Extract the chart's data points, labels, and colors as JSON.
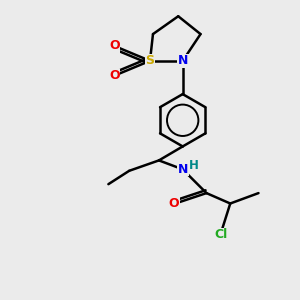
{
  "background_color": "#ebebeb",
  "atom_colors": {
    "C": "#000000",
    "N": "#0000ee",
    "O": "#ee0000",
    "S": "#ccaa00",
    "Cl": "#22aa22",
    "H": "#008888"
  },
  "bond_color": "#000000",
  "bond_width": 1.8
}
